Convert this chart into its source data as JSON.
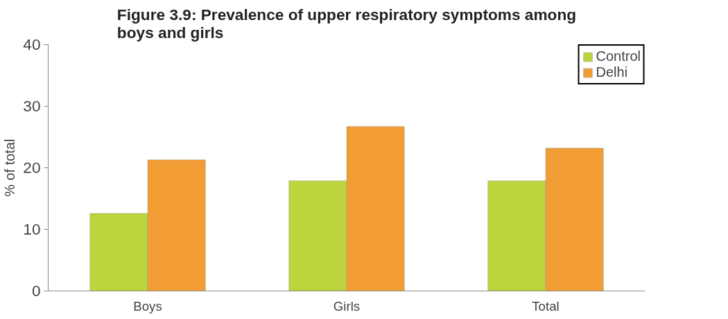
{
  "chart_data": {
    "type": "bar",
    "title": "Figure 3.9: Prevalence of upper respiratory symptoms among\nboys and girls",
    "ylabel": "% of total",
    "categories": [
      "Boys",
      "Girls",
      "Total"
    ],
    "series": [
      {
        "name": "Control",
        "color": "#bed43c",
        "values": [
          12.6,
          17.9,
          17.9
        ]
      },
      {
        "name": "Delhi",
        "color": "#f29d34",
        "values": [
          21.3,
          26.7,
          23.2
        ]
      }
    ],
    "ylim": [
      0,
      40
    ],
    "yticks": [
      0,
      10,
      20,
      30,
      40
    ],
    "grid": false,
    "legend": "top right"
  }
}
